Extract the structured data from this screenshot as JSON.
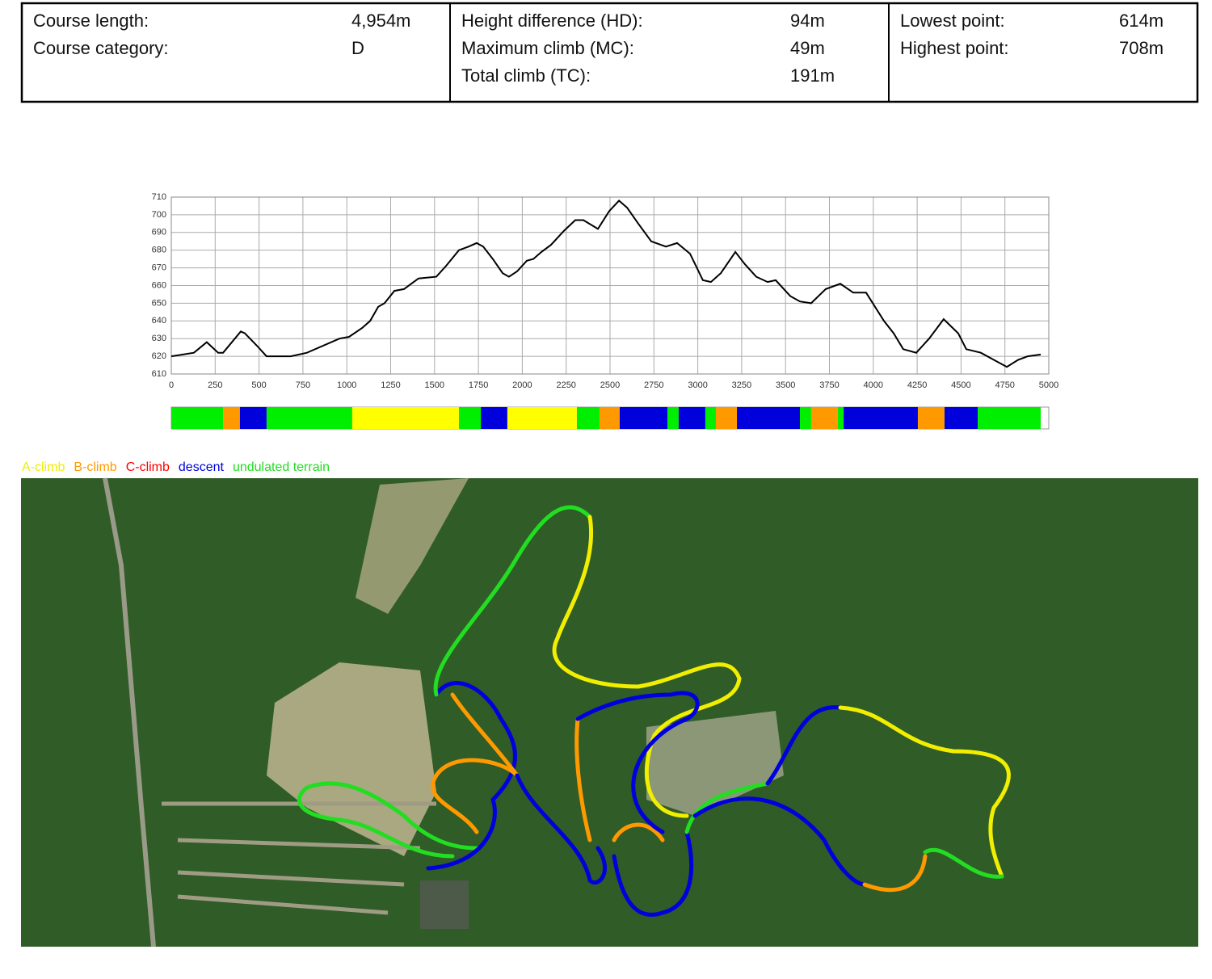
{
  "stats": [
    [
      {
        "label": "Course length:",
        "value": "4,954m"
      },
      {
        "label": "Course category:",
        "value": "D"
      }
    ],
    [
      {
        "label": "Height difference (HD):",
        "value": "94m"
      },
      {
        "label": "Maximum climb (MC):",
        "value": "49m"
      },
      {
        "label": "Total climb (TC):",
        "value": "191m"
      }
    ],
    [
      {
        "label": "Lowest point:",
        "value": "614m"
      },
      {
        "label": "Highest point:",
        "value": "708m"
      }
    ]
  ],
  "chart_data": {
    "type": "line",
    "color": "#000000",
    "grid": true,
    "x": [
      0,
      129,
      202,
      267,
      295,
      396,
      419,
      488,
      543,
      681,
      773,
      958,
      1013,
      1087,
      1133,
      1179,
      1215,
      1271,
      1326,
      1409,
      1510,
      1565,
      1639,
      1694,
      1740,
      1777,
      1832,
      1888,
      1924,
      1970,
      2026,
      2063,
      2109,
      2164,
      2238,
      2302,
      2348,
      2431,
      2495,
      2551,
      2597,
      2661,
      2735,
      2818,
      2882,
      2956,
      3029,
      3075,
      3131,
      3214,
      3269,
      3333,
      3398,
      3444,
      3527,
      3582,
      3646,
      3729,
      3812,
      3886,
      3959,
      4061,
      4116,
      4171,
      4245,
      4318,
      4401,
      4484,
      4530,
      4613,
      4687,
      4761,
      4825,
      4880,
      4954
    ],
    "values": [
      620,
      622,
      628,
      622,
      622,
      634,
      633,
      626,
      620,
      620,
      622,
      630,
      631,
      636,
      640,
      648,
      650,
      657,
      658,
      664,
      665,
      671,
      680,
      682,
      684,
      682,
      675,
      667,
      665,
      668,
      674,
      675,
      679,
      683,
      691,
      697,
      697,
      692,
      702,
      708,
      704,
      695,
      685,
      682,
      684,
      678,
      663,
      662,
      667,
      679,
      672,
      665,
      662,
      663,
      654,
      651,
      650,
      658,
      661,
      656,
      656,
      640,
      633,
      624,
      622,
      630,
      641,
      633,
      624,
      622,
      618,
      614,
      618,
      620,
      621
    ],
    "xlim": [
      0,
      5000
    ],
    "ylim": [
      610,
      710
    ],
    "xticks": [
      0,
      250,
      500,
      750,
      1000,
      1250,
      1500,
      1750,
      2000,
      2250,
      2500,
      2750,
      3000,
      3250,
      3500,
      3750,
      4000,
      4250,
      4500,
      4750,
      5000
    ],
    "yticks": [
      610,
      620,
      630,
      640,
      650,
      660,
      670,
      680,
      690,
      700,
      710
    ]
  },
  "terrain_bar": {
    "segments": [
      {
        "start": 0,
        "end": 295,
        "color": "#00ee00"
      },
      {
        "start": 295,
        "end": 391,
        "color": "#ff9900"
      },
      {
        "start": 391,
        "end": 543,
        "color": "#0000dd"
      },
      {
        "start": 543,
        "end": 1031,
        "color": "#00ee00"
      },
      {
        "start": 1031,
        "end": 1639,
        "color": "#ffff00"
      },
      {
        "start": 1639,
        "end": 1764,
        "color": "#00ee00"
      },
      {
        "start": 1764,
        "end": 1915,
        "color": "#0000dd"
      },
      {
        "start": 1915,
        "end": 2311,
        "color": "#ffff00"
      },
      {
        "start": 2311,
        "end": 2440,
        "color": "#00ee00"
      },
      {
        "start": 2440,
        "end": 2555,
        "color": "#ff9900"
      },
      {
        "start": 2555,
        "end": 2827,
        "color": "#0000dd"
      },
      {
        "start": 2827,
        "end": 2891,
        "color": "#00ee00"
      },
      {
        "start": 2891,
        "end": 3043,
        "color": "#0000dd"
      },
      {
        "start": 3043,
        "end": 3103,
        "color": "#00ee00"
      },
      {
        "start": 3103,
        "end": 3223,
        "color": "#ff9900"
      },
      {
        "start": 3223,
        "end": 3582,
        "color": "#0000dd"
      },
      {
        "start": 3582,
        "end": 3646,
        "color": "#00ee00"
      },
      {
        "start": 3646,
        "end": 3798,
        "color": "#ff9900"
      },
      {
        "start": 3798,
        "end": 3831,
        "color": "#00ee00"
      },
      {
        "start": 3831,
        "end": 4254,
        "color": "#0000dd"
      },
      {
        "start": 4254,
        "end": 4406,
        "color": "#ff9900"
      },
      {
        "start": 4406,
        "end": 4595,
        "color": "#0000dd"
      },
      {
        "start": 4595,
        "end": 4954,
        "color": "#00ee00"
      }
    ]
  },
  "legend": [
    {
      "name": "A-climb",
      "color": "#f2ee00"
    },
    {
      "name": "B-climb",
      "color": "#ff9900"
    },
    {
      "name": "C-climb",
      "color": "#ff0000"
    },
    {
      "name": "descent",
      "color": "#0000dd"
    },
    {
      "name": "undulated terrain",
      "color": "#22dd22"
    }
  ]
}
